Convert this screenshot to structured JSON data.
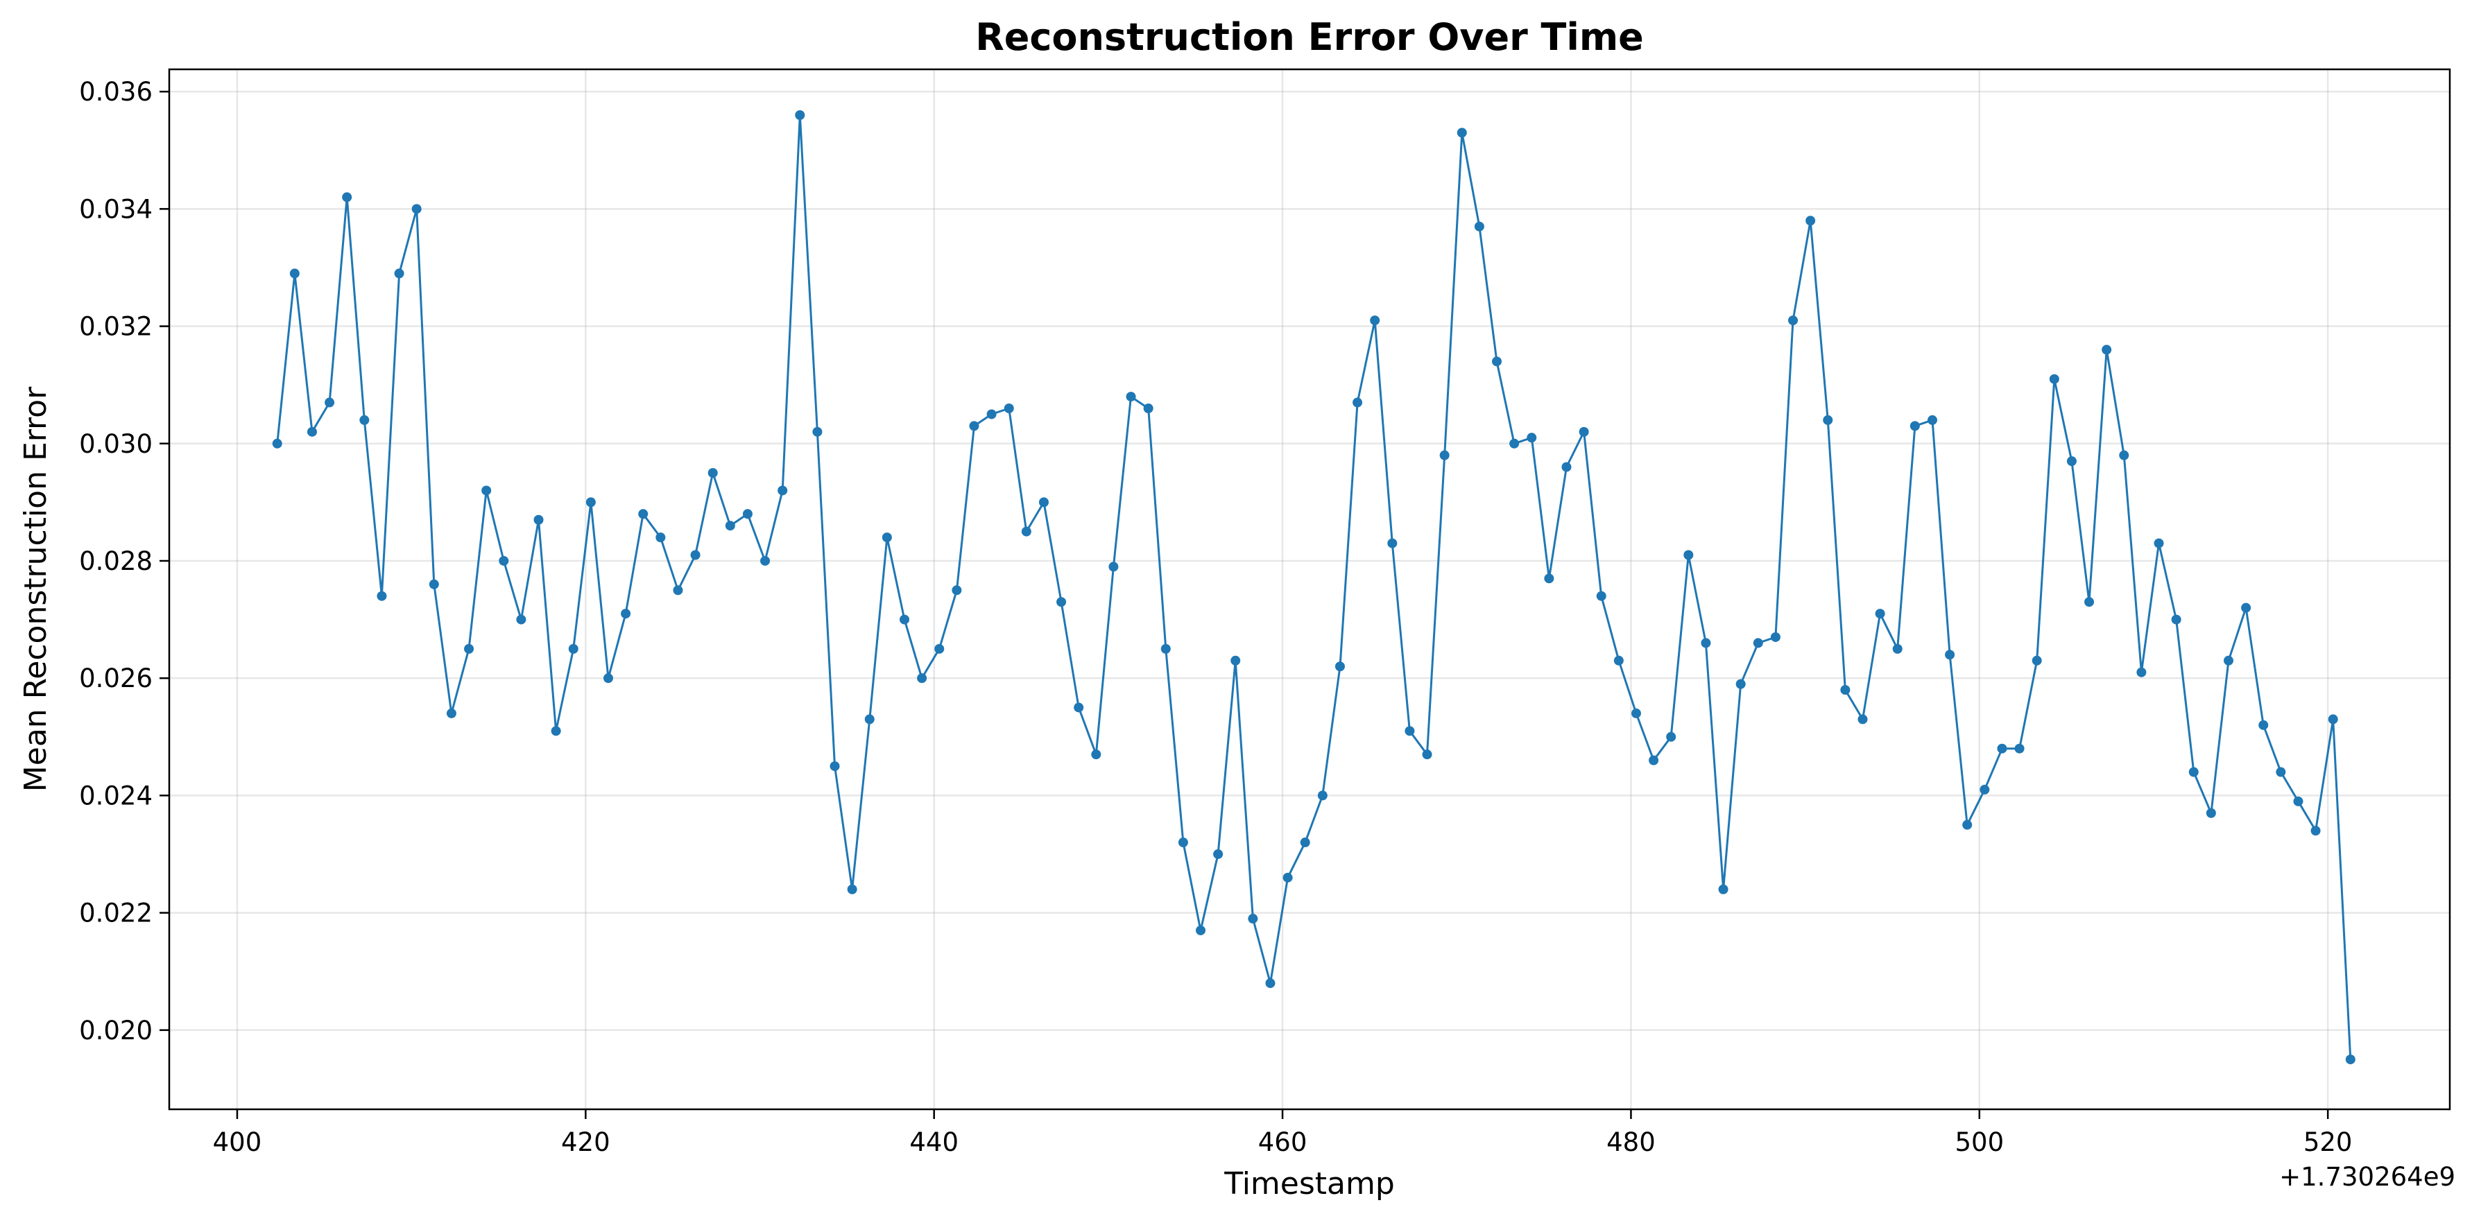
{
  "chart_data": {
    "type": "line",
    "title": "Reconstruction Error Over Time",
    "xlabel": "Timestamp",
    "ylabel": "Mean Reconstruction Error",
    "x_offset_label": "+1.730264e9",
    "xlim": [
      396.1,
      527.0
    ],
    "ylim": [
      0.01865,
      0.03638
    ],
    "xticks": [
      400,
      420,
      440,
      460,
      480,
      500,
      520
    ],
    "yticks": [
      0.02,
      0.022,
      0.024,
      0.026,
      0.028,
      0.03,
      0.032,
      0.034,
      0.036
    ],
    "xtick_labels": [
      "400",
      "420",
      "440",
      "460",
      "480",
      "500",
      "520"
    ],
    "ytick_labels": [
      "0.020",
      "0.022",
      "0.024",
      "0.026",
      "0.028",
      "0.030",
      "0.032",
      "0.034",
      "0.036"
    ],
    "grid": true,
    "color": "#1f77b4",
    "marker": "circle",
    "series": [
      {
        "x": [
          402.3,
          403.3,
          404.3,
          405.3,
          406.3,
          407.3,
          408.3,
          409.3,
          410.3,
          411.3,
          412.3,
          413.3,
          414.3,
          415.3,
          416.3,
          417.3,
          418.3,
          419.3,
          420.3,
          421.3,
          422.3,
          423.3,
          424.3,
          425.3,
          426.3,
          427.3,
          428.3,
          429.3,
          430.3,
          431.3,
          432.3,
          433.3,
          434.3,
          435.3,
          436.3,
          437.3,
          438.3,
          439.3,
          440.3,
          441.3,
          442.3,
          443.3,
          444.3,
          445.3,
          446.3,
          447.3,
          448.3,
          449.3,
          450.3,
          451.3,
          452.3,
          453.3,
          454.3,
          455.3,
          456.3,
          457.3,
          458.3,
          459.3,
          460.3,
          461.3,
          462.3,
          463.3,
          464.3,
          465.3,
          466.3,
          467.3,
          468.3,
          469.3,
          470.3,
          471.3,
          472.3,
          473.3,
          474.3,
          475.3,
          476.3,
          477.3,
          478.3,
          479.3,
          480.3,
          481.3,
          482.3,
          483.3,
          484.3,
          485.3,
          486.3,
          487.3,
          488.3,
          489.3,
          490.3,
          491.3,
          492.3,
          493.3,
          494.3,
          495.3,
          496.3,
          497.3,
          498.3,
          499.3,
          500.3,
          501.3,
          502.3,
          503.3,
          504.3,
          505.3,
          506.3,
          507.3,
          508.3,
          509.3,
          510.3,
          511.3,
          512.3,
          513.3,
          514.3,
          515.3,
          516.3,
          517.3,
          518.3,
          519.3,
          520.3,
          521.3
        ],
        "y": [
          0.03,
          0.0329,
          0.0302,
          0.0307,
          0.0342,
          0.0304,
          0.0274,
          0.0329,
          0.034,
          0.0276,
          0.0254,
          0.0265,
          0.0292,
          0.028,
          0.027,
          0.0287,
          0.0251,
          0.0265,
          0.029,
          0.026,
          0.0271,
          0.0288,
          0.0284,
          0.0275,
          0.0281,
          0.0295,
          0.0286,
          0.0288,
          0.028,
          0.0292,
          0.0356,
          0.0302,
          0.0245,
          0.0224,
          0.0253,
          0.0284,
          0.027,
          0.026,
          0.0265,
          0.0275,
          0.0303,
          0.0305,
          0.0306,
          0.0285,
          0.029,
          0.0273,
          0.0255,
          0.0247,
          0.0279,
          0.0308,
          0.0306,
          0.0265,
          0.0232,
          0.0217,
          0.023,
          0.0263,
          0.0219,
          0.0208,
          0.0226,
          0.0232,
          0.024,
          0.0262,
          0.0307,
          0.0321,
          0.0283,
          0.0251,
          0.0247,
          0.0298,
          0.0353,
          0.0337,
          0.0314,
          0.03,
          0.0301,
          0.0277,
          0.0296,
          0.0302,
          0.0274,
          0.0263,
          0.0254,
          0.0246,
          0.025,
          0.0281,
          0.0266,
          0.0224,
          0.0259,
          0.0266,
          0.0267,
          0.0321,
          0.0338,
          0.0304,
          0.0258,
          0.0253,
          0.0271,
          0.0265,
          0.0303,
          0.0304,
          0.0264,
          0.0235,
          0.0241,
          0.0248,
          0.0248,
          0.0263,
          0.0311,
          0.0297,
          0.0273,
          0.0316,
          0.0298,
          0.0261,
          0.0283,
          0.027,
          0.0244,
          0.0237,
          0.0263,
          0.0272,
          0.0252,
          0.0244,
          0.0239,
          0.0234,
          0.0253,
          0.0195
        ]
      }
    ]
  }
}
